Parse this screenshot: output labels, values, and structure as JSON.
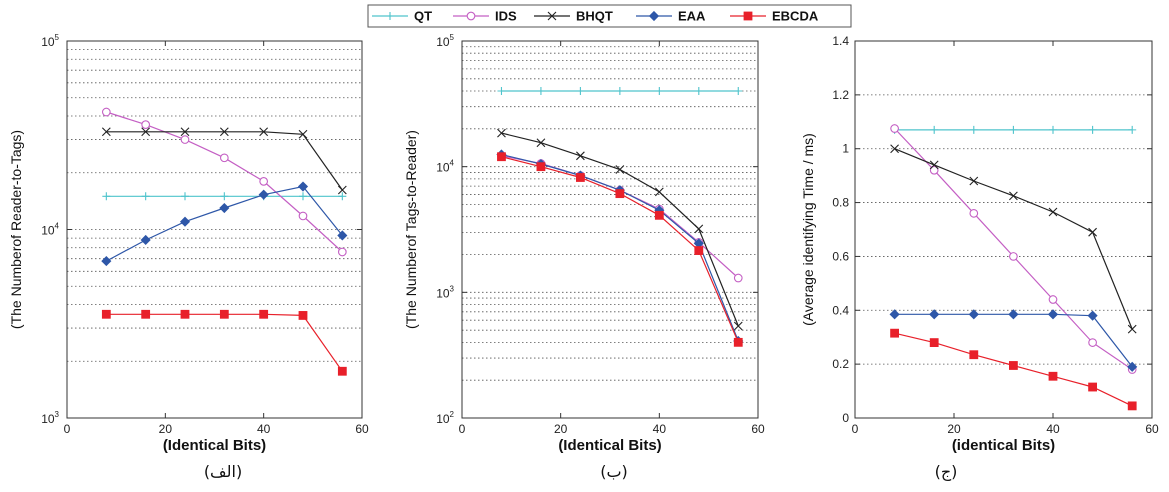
{
  "legend": [
    {
      "name": "QT",
      "color": "#4fc4cc",
      "marker": "plus"
    },
    {
      "name": "IDS",
      "color": "#c45fc4",
      "marker": "circle"
    },
    {
      "name": "BHQT",
      "color": "#222222",
      "marker": "x"
    },
    {
      "name": "EAA",
      "color": "#2e57a8",
      "marker": "diamond"
    },
    {
      "name": "EBCDA",
      "color": "#e8202a",
      "marker": "square"
    }
  ],
  "chart_data": [
    {
      "type": "line",
      "caption": "(الف)",
      "xlabel": "(Identical Bits)",
      "ylabel": "(The Numberof Reader-to-Tags)",
      "yscale": "log",
      "xlim": [
        0,
        60
      ],
      "ylim": [
        1000,
        100000
      ],
      "xticks": [
        0,
        20,
        40,
        60
      ],
      "yticks": [
        {
          "value": 1000,
          "base": "10",
          "exp": "3"
        },
        {
          "value": 10000,
          "base": "10",
          "exp": "4"
        },
        {
          "value": 100000,
          "base": "10",
          "exp": "5"
        }
      ],
      "x": [
        8,
        16,
        24,
        32,
        40,
        48,
        56
      ],
      "series": [
        {
          "name": "QT",
          "values": [
            15000,
            15000,
            15000,
            15000,
            15000,
            15000,
            15000
          ]
        },
        {
          "name": "IDS",
          "values": [
            42000,
            36000,
            30000,
            24000,
            18000,
            11800,
            7600
          ]
        },
        {
          "name": "BHQT",
          "values": [
            33000,
            33000,
            33000,
            33000,
            33000,
            32000,
            16200
          ]
        },
        {
          "name": "EAA",
          "values": [
            6800,
            8800,
            11000,
            13000,
            15300,
            16900,
            9300
          ]
        },
        {
          "name": "EBCDA",
          "values": [
            3550,
            3550,
            3550,
            3550,
            3550,
            3500,
            1770
          ]
        }
      ]
    },
    {
      "type": "line",
      "caption": "(ب)",
      "xlabel": "(Identical Bits)",
      "ylabel": "(The Numberof Tags-to-Reader)",
      "yscale": "log",
      "xlim": [
        0,
        60
      ],
      "ylim": [
        100,
        100000
      ],
      "xticks": [
        0,
        20,
        40,
        60
      ],
      "yticks": [
        {
          "value": 100,
          "base": "10",
          "exp": "2"
        },
        {
          "value": 1000,
          "base": "10",
          "exp": "3"
        },
        {
          "value": 10000,
          "base": "10",
          "exp": "4"
        },
        {
          "value": 100000,
          "base": "10",
          "exp": "5"
        }
      ],
      "x": [
        8,
        16,
        24,
        32,
        40,
        48,
        56
      ],
      "series": [
        {
          "name": "QT",
          "values": [
            40000,
            40000,
            40000,
            40000,
            40000,
            40000,
            40000
          ]
        },
        {
          "name": "IDS",
          "values": [
            12200,
            10600,
            8500,
            6500,
            4600,
            2500,
            1300
          ]
        },
        {
          "name": "BHQT",
          "values": [
            18500,
            15500,
            12200,
            9500,
            6300,
            3200,
            540
          ]
        },
        {
          "name": "EAA",
          "values": [
            12500,
            10500,
            8500,
            6500,
            4500,
            2450,
            410
          ]
        },
        {
          "name": "EBCDA",
          "values": [
            12000,
            10000,
            8200,
            6100,
            4100,
            2150,
            400
          ]
        }
      ]
    },
    {
      "type": "line",
      "caption": "(ج)",
      "xlabel": "(identical Bits)",
      "ylabel": "(Average identifying Time / ms)",
      "yscale": "linear",
      "xlim": [
        0,
        60
      ],
      "ylim": [
        0,
        1.4
      ],
      "xticks": [
        0,
        20,
        40,
        60
      ],
      "yticks": [
        {
          "value": 0,
          "label": "0"
        },
        {
          "value": 0.2,
          "label": "0.2"
        },
        {
          "value": 0.4,
          "label": "0.4"
        },
        {
          "value": 0.6,
          "label": "0.6"
        },
        {
          "value": 0.8,
          "label": "0.8"
        },
        {
          "value": 1,
          "label": "1"
        },
        {
          "value": 1.2,
          "label": "1.2"
        },
        {
          "value": 1.4,
          "label": "1.4"
        }
      ],
      "x": [
        8,
        16,
        24,
        32,
        40,
        48,
        56
      ],
      "series": [
        {
          "name": "QT",
          "values": [
            1.07,
            1.07,
            1.07,
            1.07,
            1.07,
            1.07,
            1.07
          ]
        },
        {
          "name": "IDS",
          "values": [
            1.075,
            0.92,
            0.76,
            0.6,
            0.44,
            0.28,
            0.18
          ]
        },
        {
          "name": "BHQT",
          "values": [
            1.0,
            0.94,
            0.88,
            0.825,
            0.765,
            0.69,
            0.33
          ]
        },
        {
          "name": "EAA",
          "values": [
            0.385,
            0.385,
            0.385,
            0.385,
            0.385,
            0.38,
            0.19
          ]
        },
        {
          "name": "EBCDA",
          "values": [
            0.315,
            0.28,
            0.235,
            0.195,
            0.155,
            0.115,
            0.045
          ]
        }
      ]
    }
  ]
}
